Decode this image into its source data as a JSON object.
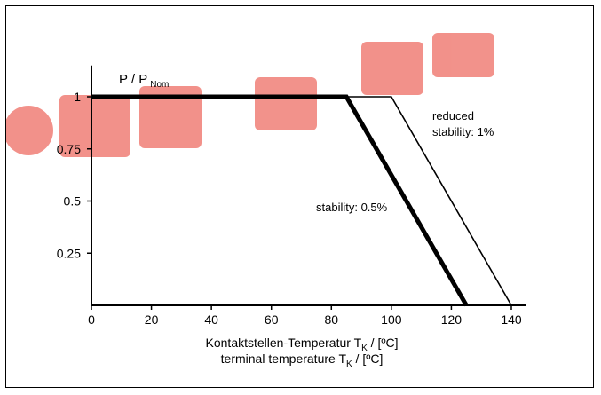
{
  "chart_data": {
    "type": "line",
    "ylabel_main": "P / P",
    "ylabel_sub": "Nom",
    "xlabel_line1_main": "Kontaktstellen-Temperatur T",
    "xlabel_line1_sub": "K",
    "xlabel_line1_unit": " / [ºC]",
    "xlabel_line2_main": "terminal temperature T",
    "xlabel_line2_sub": "K",
    "xlabel_line2_unit": " / [ºC]",
    "xlim": [
      0,
      145
    ],
    "ylim": [
      0,
      1.15
    ],
    "x_ticks": [
      0,
      20,
      40,
      60,
      80,
      100,
      120,
      140
    ],
    "y_ticks": [
      0.25,
      0.5,
      0.75,
      1
    ],
    "y_tick_labels": [
      "0.25",
      "0.5",
      "0.75",
      "1"
    ],
    "series": [
      {
        "name": "stability: 0.5%",
        "x": [
          0,
          85,
          125
        ],
        "y": [
          1,
          1,
          0
        ],
        "color": "#000000",
        "weight": "thick"
      },
      {
        "name_line1": "reduced",
        "name_line2": "stability: 1%",
        "x": [
          0,
          100,
          140
        ],
        "y": [
          1,
          1,
          0
        ],
        "color": "#000000",
        "weight": "thin"
      }
    ],
    "grid": false,
    "watermark_color": "#e8392b"
  }
}
